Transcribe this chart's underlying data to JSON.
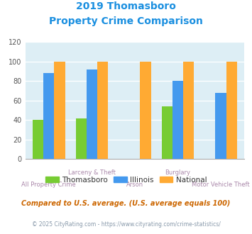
{
  "title_line1": "2019 Thomasboro",
  "title_line2": "Property Crime Comparison",
  "title_color": "#1a8fe0",
  "categories": [
    "All Property Crime",
    "Larceny & Theft",
    "Arson",
    "Burglary",
    "Motor Vehicle Theft"
  ],
  "cat_labels_top": [
    "",
    "Larceny & Theft",
    "",
    "Burglary",
    ""
  ],
  "cat_labels_bottom": [
    "All Property Crime",
    "",
    "Arson",
    "",
    "Motor Vehicle Theft"
  ],
  "thomasboro": [
    40,
    42,
    0,
    54,
    0
  ],
  "illinois": [
    88,
    92,
    0,
    80,
    68
  ],
  "national": [
    100,
    100,
    100,
    100,
    100
  ],
  "thomasboro_color": "#77cc33",
  "illinois_color": "#4499ee",
  "national_color": "#ffaa33",
  "ylim": [
    0,
    120
  ],
  "yticks": [
    0,
    20,
    40,
    60,
    80,
    100,
    120
  ],
  "bg_color": "#ddeef5",
  "footnote": "Compared to U.S. average. (U.S. average equals 100)",
  "footnote2": "© 2025 CityRating.com - https://www.cityrating.com/crime-statistics/",
  "footnote_color": "#cc6600",
  "footnote2_color": "#8899aa",
  "legend_labels": [
    "Thomasboro",
    "Illinois",
    "National"
  ],
  "label_color": "#aa88aa",
  "bar_width": 0.25
}
